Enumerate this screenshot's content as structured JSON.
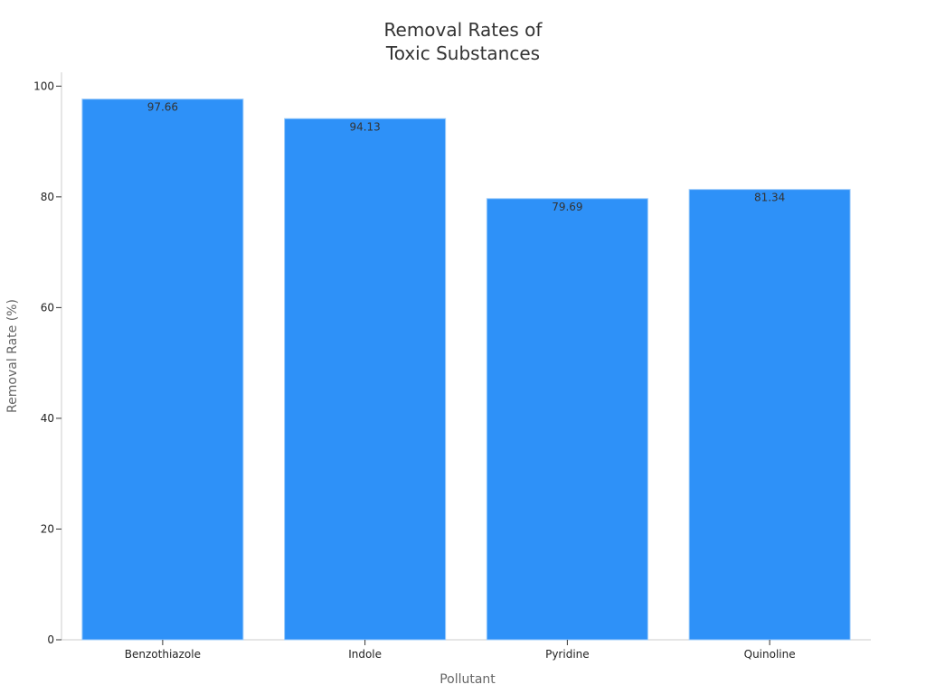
{
  "chart_data": {
    "type": "bar",
    "title": [
      "Removal Rates of",
      "Toxic Substances"
    ],
    "xlabel": "Pollutant",
    "ylabel": "Removal Rate (%)",
    "categories": [
      "Benzothiazole",
      "Indole",
      "Pyridine",
      "Quinoline"
    ],
    "values": [
      97.66,
      94.13,
      79.69,
      81.34
    ],
    "value_labels": [
      "97.66",
      "94.13",
      "79.69",
      "81.34"
    ],
    "ylim": [
      0,
      102.5
    ],
    "yticks": [
      0,
      20,
      40,
      60,
      80,
      100
    ],
    "grid": false,
    "legend": "none",
    "colors": {
      "bar_fill": "#2E91F8",
      "bar_stroke": "#9CCBFA",
      "axis": "#CCCCCC",
      "tick": "#333333"
    }
  }
}
